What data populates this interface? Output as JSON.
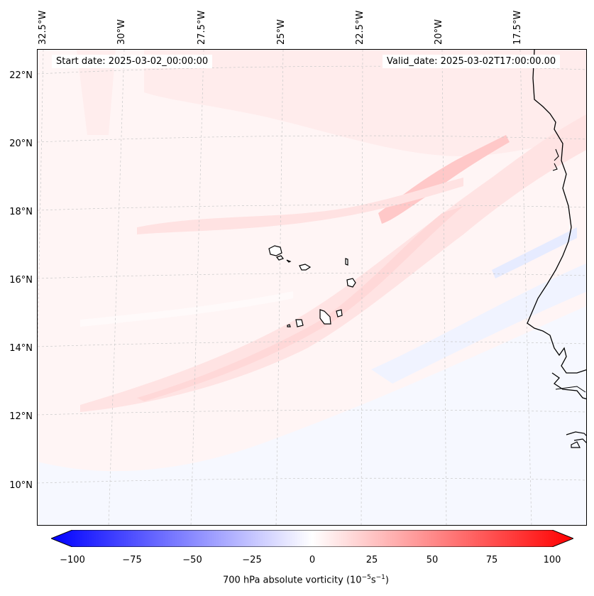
{
  "map": {
    "header": {
      "start_date": "Start date: 2025-03-02_00:00:00",
      "valid_date": "Valid_date: 2025-03-02T17:00:00.00"
    },
    "longitude_labels": [
      "32.5°W",
      "30°W",
      "27.5°W",
      "25°W",
      "22.5°W",
      "20°W",
      "17.5°W"
    ],
    "latitude_labels": [
      "22°N",
      "20°N",
      "18°N",
      "16°N",
      "14°N",
      "12°N",
      "10°N"
    ],
    "field": "700 hPa absolute vorticity",
    "gridlines": true
  },
  "colorbar": {
    "ticks": [
      "−100",
      "−75",
      "−50",
      "−25",
      "0",
      "25",
      "50",
      "75",
      "100"
    ],
    "label_main": "700 hPa absolute vorticity (10",
    "label_exp1": "−5",
    "label_mid": "s",
    "label_exp2": "−1",
    "label_end": ")",
    "min_value": -100,
    "max_value": 100,
    "cmap": "bwr",
    "neg_color": "#0000ff",
    "zero_color": "#ffffff",
    "pos_color": "#ff0000"
  }
}
